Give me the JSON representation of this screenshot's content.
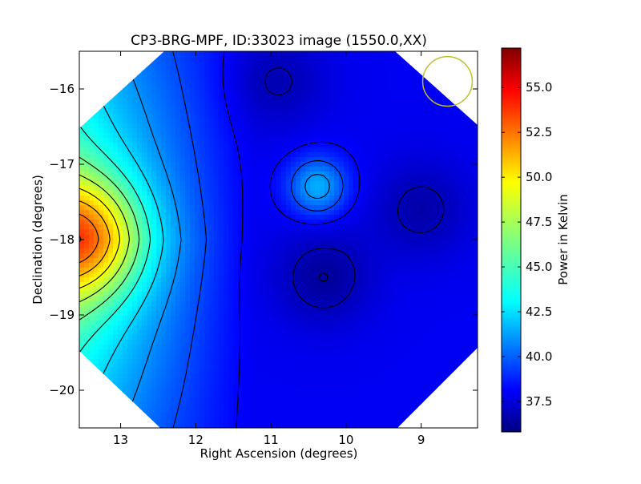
{
  "chart_data": {
    "type": "heatmap",
    "title": "CP3-BRG-MPF, ID:33023 image (1550.0,XX)",
    "xlabel": "Right Ascension (degrees)",
    "ylabel": "Declination (degrees)",
    "xlim": [
      13.55,
      8.25
    ],
    "ylim": [
      -20.5,
      -15.5
    ],
    "x_ticks": [
      13,
      12,
      11,
      10,
      9
    ],
    "x_tick_labels": [
      "13",
      "12",
      "11",
      "10",
      "9"
    ],
    "y_ticks": [
      -16,
      -17,
      -18,
      -19,
      -20
    ],
    "y_tick_labels": [
      "−16",
      "−17",
      "−18",
      "−19",
      "−20"
    ],
    "colorbar": {
      "label": "Power in Kelvin",
      "range": [
        35.8,
        57.2
      ],
      "ticks": [
        37.5,
        40.0,
        42.5,
        45.0,
        47.5,
        50.0,
        52.5,
        55.0
      ],
      "tick_labels": [
        "37.5",
        "40.0",
        "42.5",
        "45.0",
        "47.5",
        "50.0",
        "52.5",
        "55.0"
      ],
      "colormap": "jet"
    },
    "features": [
      {
        "kind": "peak",
        "ra": 13.5,
        "dec": -17.98,
        "value": 57.0
      },
      {
        "kind": "local-max",
        "ra": 10.38,
        "dec": -17.3,
        "value": 43.5
      },
      {
        "kind": "local-min",
        "ra": 10.3,
        "dec": -18.5,
        "value": 36.5
      },
      {
        "kind": "low-region",
        "ra": 9.0,
        "dec": -17.6,
        "value": 36.8
      },
      {
        "kind": "low-region",
        "ra": 10.9,
        "dec": -15.9,
        "value": 37.0
      }
    ],
    "beam_circle": {
      "ra": 8.65,
      "dec": -15.9,
      "radius_deg": 0.33,
      "color": "#bfbf2a"
    },
    "grid": false,
    "contours": true
  }
}
